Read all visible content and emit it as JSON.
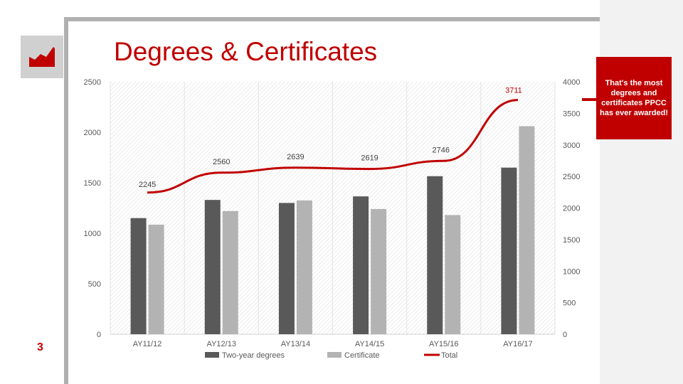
{
  "slide": {
    "title": "Degrees & Certificates",
    "page_number": "3",
    "callout": "That's the most degrees and certificates PPCC has ever awarded!"
  },
  "logo": {
    "icon": "bar-chart-icon"
  },
  "colors": {
    "accent": "#c00000",
    "bar1": "#595959",
    "bar2": "#b3b3b3",
    "line": "#c00000"
  },
  "chart_data": {
    "type": "bar",
    "categories": [
      "AY11/12",
      "AY12/13",
      "AY13/14",
      "AY14/15",
      "AY15/16",
      "AY16/17"
    ],
    "series": [
      {
        "name": "Two-year degrees",
        "type": "bar",
        "axis": "left",
        "values": [
          1150,
          1330,
          1300,
          1365,
          1565,
          1650
        ]
      },
      {
        "name": "Certificate",
        "type": "bar",
        "axis": "left",
        "values": [
          1085,
          1220,
          1325,
          1240,
          1180,
          2060
        ]
      },
      {
        "name": "Total",
        "type": "line",
        "axis": "right",
        "values": [
          2245,
          2560,
          2639,
          2619,
          2746,
          3711
        ],
        "data_labels": [
          "2245",
          "2560",
          "2639",
          "2619",
          "2746",
          "3711"
        ]
      }
    ],
    "y_left": {
      "ylim": [
        0,
        2500
      ],
      "ticks": [
        "0",
        "500",
        "1000",
        "1500",
        "2000",
        "2500"
      ]
    },
    "y_right": {
      "ylim": [
        0,
        4000
      ],
      "ticks": [
        "0",
        "500",
        "1000",
        "1500",
        "2000",
        "2500",
        "3000",
        "3500",
        "4000"
      ]
    },
    "legend_position": "bottom",
    "grid": true
  }
}
